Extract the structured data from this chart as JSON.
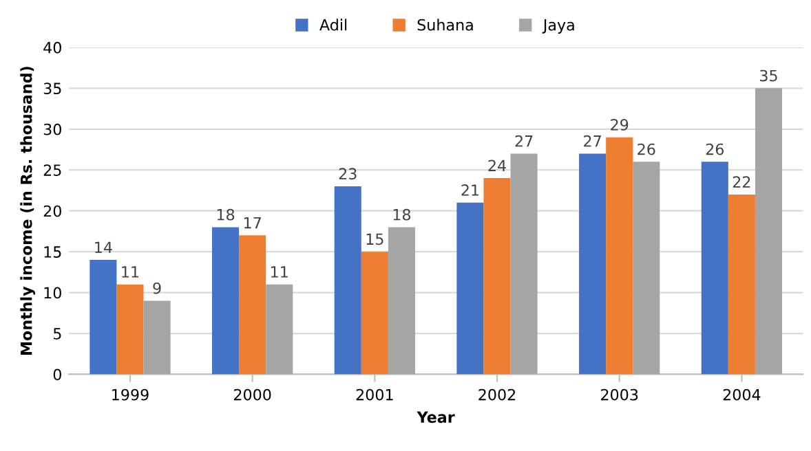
{
  "chart_data": {
    "type": "bar",
    "xlabel": "Year",
    "ylabel": "Monthly income (in Rs. thousand)",
    "categories": [
      "1999",
      "2000",
      "2001",
      "2002",
      "2003",
      "2004"
    ],
    "series": [
      {
        "name": "Adil",
        "color": "#4472c4",
        "values": [
          14,
          18,
          23,
          21,
          27,
          26
        ]
      },
      {
        "name": "Suhana",
        "color": "#ed7d31",
        "values": [
          11,
          17,
          15,
          24,
          29,
          22
        ]
      },
      {
        "name": "Jaya",
        "color": "#a5a5a5",
        "values": [
          9,
          11,
          18,
          27,
          26,
          35
        ]
      }
    ],
    "ylim": [
      0,
      40
    ],
    "yticks": [
      0,
      5,
      10,
      15,
      20,
      25,
      30,
      35,
      40
    ],
    "grid": "y",
    "legend": "top",
    "data_labels": true
  }
}
